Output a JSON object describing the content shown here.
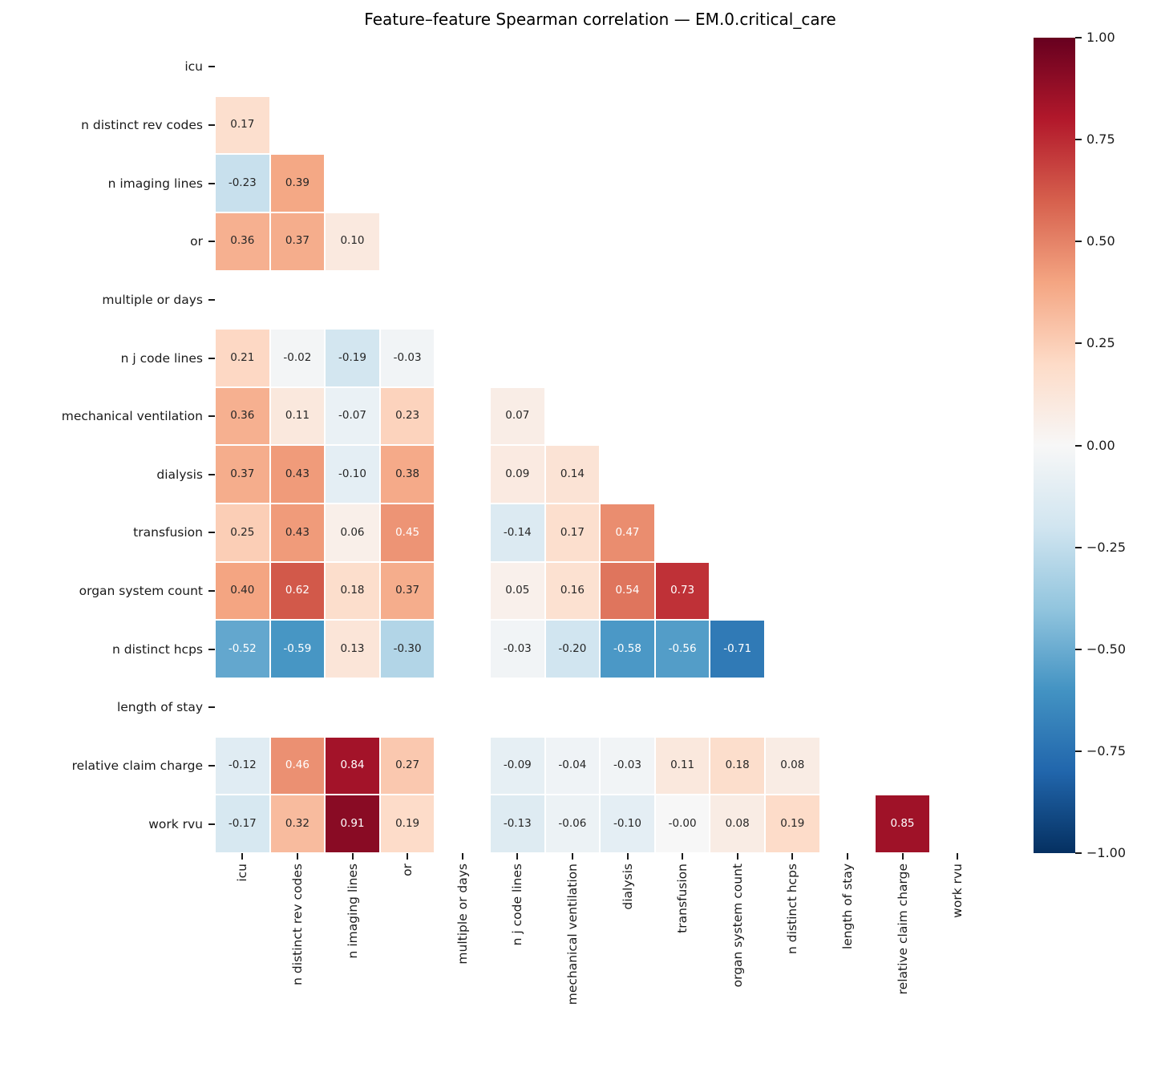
{
  "title": "Feature–feature Spearman correlation — EM.0.critical_care",
  "chart_data": {
    "type": "heatmap",
    "subtype": "lower-triangle-correlation-matrix",
    "title": "Feature–feature Spearman correlation — EM.0.critical_care",
    "features": [
      "icu",
      "n distinct rev codes",
      "n imaging lines",
      "or",
      "multiple or days",
      "n j code lines",
      "mechanical ventilation",
      "dialysis",
      "transfusion",
      "organ system count",
      "n distinct hcps",
      "length of stay",
      "relative claim charge",
      "work rvu"
    ],
    "matrix": [
      [
        null,
        null,
        null,
        null,
        null,
        null,
        null,
        null,
        null,
        null,
        null,
        null,
        null,
        null
      ],
      [
        0.17,
        null,
        null,
        null,
        null,
        null,
        null,
        null,
        null,
        null,
        null,
        null,
        null,
        null
      ],
      [
        -0.23,
        0.39,
        null,
        null,
        null,
        null,
        null,
        null,
        null,
        null,
        null,
        null,
        null,
        null
      ],
      [
        0.36,
        0.37,
        0.1,
        null,
        null,
        null,
        null,
        null,
        null,
        null,
        null,
        null,
        null,
        null
      ],
      [
        null,
        null,
        null,
        null,
        null,
        null,
        null,
        null,
        null,
        null,
        null,
        null,
        null,
        null
      ],
      [
        0.21,
        -0.02,
        -0.19,
        -0.03,
        null,
        null,
        null,
        null,
        null,
        null,
        null,
        null,
        null,
        null
      ],
      [
        0.36,
        0.11,
        -0.07,
        0.23,
        null,
        0.07,
        null,
        null,
        null,
        null,
        null,
        null,
        null,
        null
      ],
      [
        0.37,
        0.43,
        -0.1,
        0.38,
        null,
        0.09,
        0.14,
        null,
        null,
        null,
        null,
        null,
        null,
        null
      ],
      [
        0.25,
        0.43,
        0.06,
        0.45,
        null,
        -0.14,
        0.17,
        0.47,
        null,
        null,
        null,
        null,
        null,
        null
      ],
      [
        0.4,
        0.62,
        0.18,
        0.37,
        null,
        0.05,
        0.16,
        0.54,
        0.73,
        null,
        null,
        null,
        null,
        null
      ],
      [
        -0.52,
        -0.59,
        0.13,
        -0.3,
        null,
        -0.03,
        -0.2,
        -0.58,
        -0.56,
        -0.71,
        null,
        null,
        null,
        null
      ],
      [
        null,
        null,
        null,
        null,
        null,
        null,
        null,
        null,
        null,
        null,
        null,
        null,
        null,
        null
      ],
      [
        -0.12,
        0.46,
        0.84,
        0.27,
        null,
        -0.09,
        -0.04,
        -0.03,
        0.11,
        0.18,
        0.08,
        null,
        null,
        null
      ],
      [
        -0.17,
        0.32,
        0.91,
        0.19,
        null,
        -0.13,
        -0.06,
        -0.1,
        -0.0,
        0.08,
        0.19,
        null,
        0.85,
        null
      ]
    ],
    "annotation_decimals": 2,
    "vmin": -1.0,
    "vmax": 1.0,
    "colormap": "RdBu_r",
    "colormap_stops": [
      "#053061",
      "#2166ac",
      "#4393c3",
      "#92c5de",
      "#d1e5f0",
      "#f7f7f7",
      "#fddbc7",
      "#f4a582",
      "#d6604d",
      "#b2182b",
      "#67001f"
    ],
    "annotation_text_dark": "#262626",
    "annotation_text_light": "#ffffff",
    "colorbar_ticks": [
      {
        "label": "1.00",
        "value": 1.0
      },
      {
        "label": "0.75",
        "value": 0.75
      },
      {
        "label": "0.50",
        "value": 0.5
      },
      {
        "label": "0.25",
        "value": 0.25
      },
      {
        "label": "0.00",
        "value": 0.0
      },
      {
        "label": "−0.25",
        "value": -0.25
      },
      {
        "label": "−0.50",
        "value": -0.5
      },
      {
        "label": "−0.75",
        "value": -0.75
      },
      {
        "label": "−1.00",
        "value": -1.0
      }
    ],
    "legend_position": "right-colorbar",
    "grid": false
  }
}
